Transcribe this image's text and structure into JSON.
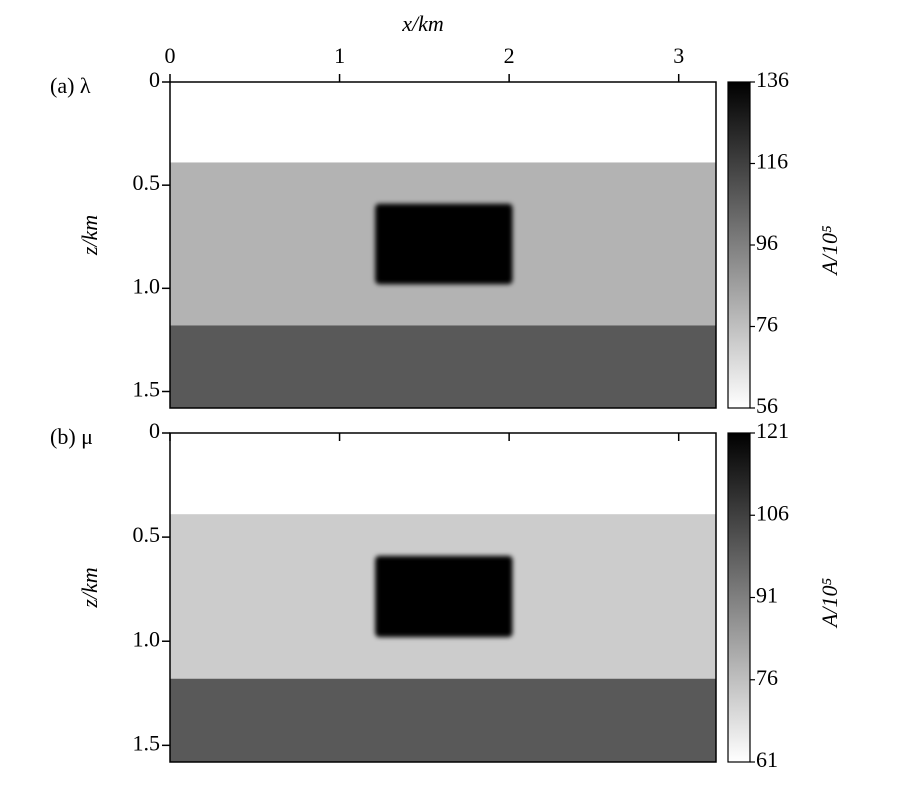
{
  "chart_data": [
    {
      "type": "heatmap",
      "title": "(a) λ",
      "x_label": "x/km",
      "y_label": "z/km",
      "colorbar_label": "A/10⁵",
      "xlim": [
        0,
        3.22
      ],
      "xticks": [
        0,
        1,
        2,
        3
      ],
      "show_xtick_labels": true,
      "ylim": [
        0,
        1.58
      ],
      "yticks": [
        0,
        0.5,
        {
          "value": 1,
          "label": "1.0"
        },
        1.5
      ],
      "y_inverted": true,
      "clim": [
        56,
        136
      ],
      "cticks": [
        56,
        76,
        96,
        116,
        136
      ],
      "colormap": "gray_r",
      "regions": [
        {
          "x0": 0,
          "x1": 3.22,
          "z0": 0,
          "z1": 0.39,
          "value": 56
        },
        {
          "x0": 0,
          "x1": 3.22,
          "z0": 0.39,
          "z1": 1.18,
          "value": 80
        },
        {
          "x0": 0,
          "x1": 3.22,
          "z0": 1.18,
          "z1": 1.58,
          "value": 108
        },
        {
          "x0": 1.21,
          "x1": 2.02,
          "z0": 0.59,
          "z1": 0.98,
          "value": 136
        }
      ]
    },
    {
      "type": "heatmap",
      "title": "(b) μ",
      "y_label": "z/km",
      "colorbar_label": "A/10⁵",
      "xlim": [
        0,
        3.22
      ],
      "xticks": [
        0,
        1,
        2,
        3
      ],
      "show_xtick_labels": false,
      "ylim": [
        0,
        1.58
      ],
      "yticks": [
        0,
        0.5,
        {
          "value": 1,
          "label": "1.0"
        },
        1.5
      ],
      "y_inverted": true,
      "clim": [
        61,
        121
      ],
      "cticks": [
        61,
        76,
        91,
        106,
        121
      ],
      "colormap": "gray_r",
      "regions": [
        {
          "x0": 0,
          "x1": 3.22,
          "z0": 0,
          "z1": 0.39,
          "value": 61
        },
        {
          "x0": 0,
          "x1": 3.22,
          "z0": 0.39,
          "z1": 1.18,
          "value": 73
        },
        {
          "x0": 0,
          "x1": 3.22,
          "z0": 1.18,
          "z1": 1.58,
          "value": 100
        },
        {
          "x0": 1.21,
          "x1": 2.02,
          "z0": 0.59,
          "z1": 0.98,
          "value": 121
        }
      ]
    }
  ]
}
